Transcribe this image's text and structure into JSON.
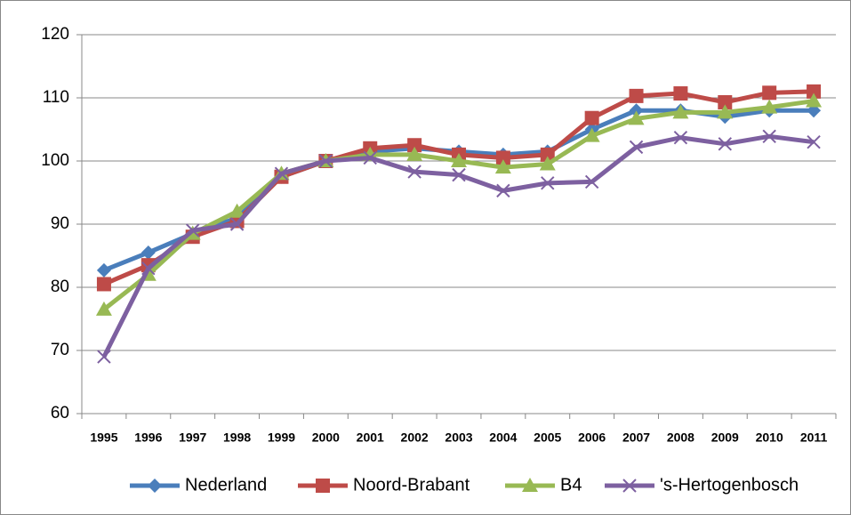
{
  "chart_data": {
    "type": "line",
    "categories": [
      "1995",
      "1996",
      "1997",
      "1998",
      "1999",
      "2000",
      "2001",
      "2002",
      "2003",
      "2004",
      "2005",
      "2006",
      "2007",
      "2008",
      "2009",
      "2010",
      "2011"
    ],
    "series": [
      {
        "name": "Nederland",
        "color": "#4a7ebb",
        "marker": "diamond",
        "values": [
          82.7,
          85.5,
          88.5,
          91,
          97.5,
          100,
          101.5,
          102,
          101.5,
          101,
          101.5,
          105,
          108,
          108,
          107,
          108,
          108
        ]
      },
      {
        "name": "Noord-Brabant",
        "color": "#be4b48",
        "marker": "square",
        "values": [
          80.5,
          83.5,
          88,
          90.5,
          97.5,
          100,
          102,
          102.5,
          101,
          100.5,
          101,
          106.8,
          110.3,
          110.7,
          109.3,
          110.8,
          111
        ]
      },
      {
        "name": "B4",
        "color": "#98b954",
        "marker": "triangle",
        "values": [
          76.5,
          82,
          88.5,
          92,
          98,
          100,
          101,
          101,
          100,
          99,
          99.5,
          104,
          106.7,
          107.7,
          107.7,
          108.5,
          109.5
        ]
      },
      {
        "name": "'s-Hertogenbosch",
        "color": "#7d60a0",
        "marker": "x",
        "values": [
          69,
          83,
          89,
          90,
          98,
          100,
          100.5,
          98.3,
          97.8,
          95.3,
          96.5,
          96.7,
          102.2,
          103.7,
          102.7,
          103.9,
          103
        ]
      }
    ],
    "ylim": [
      60,
      120
    ],
    "yticks": [
      60,
      70,
      80,
      90,
      100,
      110,
      120
    ],
    "grid": true,
    "legend": "bottom"
  }
}
